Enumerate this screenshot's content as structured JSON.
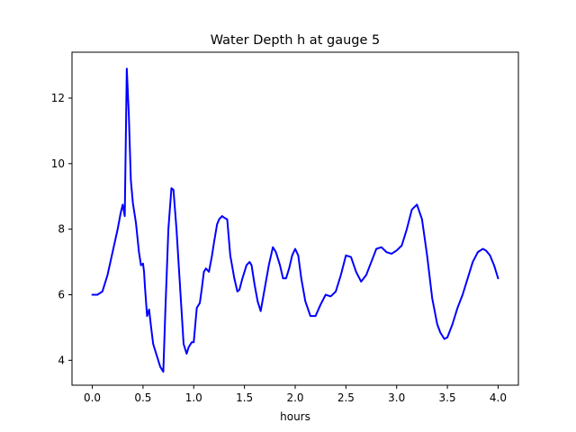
{
  "chart_data": {
    "type": "line",
    "title": "Water Depth h at gauge 5",
    "xlabel": "hours",
    "ylabel": "",
    "xlim": [
      -0.2,
      4.2
    ],
    "ylim": [
      3.24,
      13.4
    ],
    "xticks": [
      0.0,
      0.5,
      1.0,
      1.5,
      2.0,
      2.5,
      3.0,
      3.5,
      4.0
    ],
    "xtick_labels": [
      "0.0",
      "0.5",
      "1.0",
      "1.5",
      "2.0",
      "2.5",
      "3.0",
      "3.5",
      "4.0"
    ],
    "yticks": [
      4,
      6,
      8,
      10,
      12
    ],
    "ytick_labels": [
      "4",
      "6",
      "8",
      "10",
      "12"
    ],
    "grid": false,
    "series": [
      {
        "color": "#0000ff",
        "x": [
          0.0,
          0.05,
          0.1,
          0.15,
          0.2,
          0.25,
          0.28,
          0.3,
          0.32,
          0.34,
          0.36,
          0.38,
          0.4,
          0.43,
          0.46,
          0.48,
          0.5,
          0.51,
          0.52,
          0.54,
          0.56,
          0.58,
          0.6,
          0.63,
          0.67,
          0.7,
          0.72,
          0.75,
          0.78,
          0.8,
          0.83,
          0.87,
          0.9,
          0.93,
          0.95,
          0.98,
          1.0,
          1.03,
          1.06,
          1.08,
          1.1,
          1.12,
          1.15,
          1.18,
          1.2,
          1.23,
          1.25,
          1.28,
          1.3,
          1.33,
          1.36,
          1.4,
          1.43,
          1.45,
          1.48,
          1.52,
          1.55,
          1.57,
          1.6,
          1.63,
          1.66,
          1.7,
          1.74,
          1.78,
          1.81,
          1.85,
          1.88,
          1.91,
          1.94,
          1.97,
          2.0,
          2.03,
          2.06,
          2.1,
          2.15,
          2.2,
          2.25,
          2.3,
          2.35,
          2.4,
          2.45,
          2.5,
          2.55,
          2.6,
          2.65,
          2.7,
          2.75,
          2.8,
          2.85,
          2.9,
          2.95,
          3.0,
          3.05,
          3.1,
          3.15,
          3.2,
          3.25,
          3.3,
          3.35,
          3.4,
          3.43,
          3.47,
          3.5,
          3.55,
          3.6,
          3.65,
          3.7,
          3.75,
          3.8,
          3.85,
          3.88,
          3.92,
          3.96,
          4.0
        ],
        "y": [
          6.0,
          6.0,
          6.1,
          6.6,
          7.3,
          8.0,
          8.5,
          8.75,
          8.4,
          12.9,
          11.5,
          9.5,
          8.8,
          8.2,
          7.3,
          6.9,
          6.95,
          6.7,
          6.2,
          5.35,
          5.55,
          5.0,
          4.5,
          4.2,
          3.8,
          3.65,
          5.5,
          8.0,
          9.25,
          9.2,
          8.0,
          6.0,
          4.5,
          4.2,
          4.4,
          4.55,
          4.55,
          5.6,
          5.75,
          6.2,
          6.7,
          6.8,
          6.7,
          7.2,
          7.6,
          8.15,
          8.3,
          8.4,
          8.35,
          8.3,
          7.2,
          6.5,
          6.1,
          6.15,
          6.5,
          6.9,
          7.0,
          6.9,
          6.3,
          5.8,
          5.5,
          6.2,
          6.9,
          7.45,
          7.3,
          6.9,
          6.5,
          6.5,
          6.8,
          7.2,
          7.4,
          7.2,
          6.5,
          5.8,
          5.35,
          5.35,
          5.7,
          6.0,
          5.95,
          6.1,
          6.6,
          7.2,
          7.15,
          6.7,
          6.4,
          6.6,
          7.0,
          7.4,
          7.45,
          7.3,
          7.25,
          7.35,
          7.5,
          8.0,
          8.6,
          8.75,
          8.3,
          7.2,
          5.9,
          5.1,
          4.85,
          4.65,
          4.7,
          5.1,
          5.6,
          6.0,
          6.5,
          7.0,
          7.3,
          7.4,
          7.35,
          7.2,
          6.9,
          6.5
        ]
      }
    ]
  }
}
